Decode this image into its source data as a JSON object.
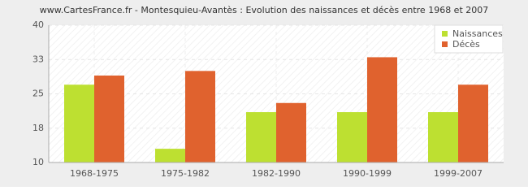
{
  "chart_data": {
    "type": "bar",
    "title": "www.CartesFrance.fr - Montesquieu-Avantès : Evolution des naissances et décès entre 1968 et 2007",
    "categories": [
      "1968-1975",
      "1975-1982",
      "1982-1990",
      "1990-1999",
      "1999-2007"
    ],
    "series": [
      {
        "name": "Naissances",
        "color": "#bde031",
        "values": [
          27,
          13,
          21,
          21,
          21
        ]
      },
      {
        "name": "Décès",
        "color": "#e0622e",
        "values": [
          29,
          30,
          23,
          33,
          27
        ]
      }
    ],
    "ylim": [
      10,
      40
    ],
    "yticks": [
      10,
      {
        "value": 17.5,
        "label": "18"
      },
      25,
      {
        "value": 32.5,
        "label": "33"
      },
      40
    ],
    "grid": true,
    "legend": "top-right"
  }
}
